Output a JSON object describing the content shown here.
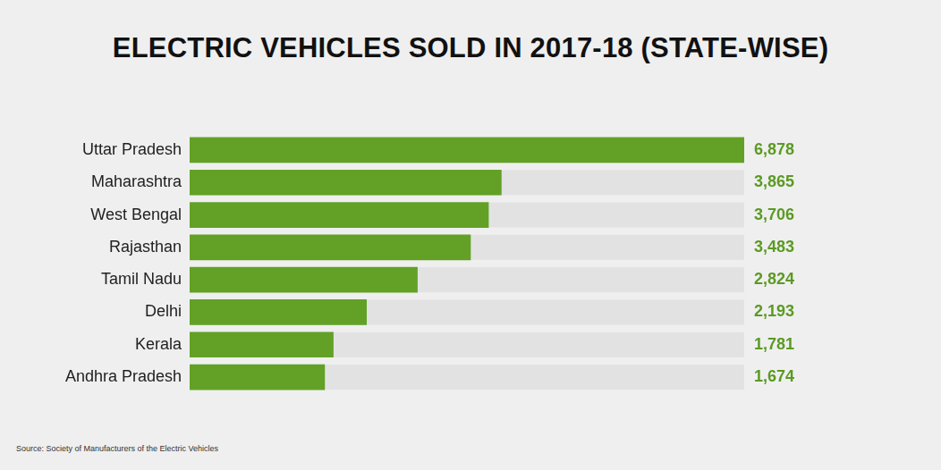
{
  "chart_data": {
    "type": "bar",
    "title": "ELECTRIC VEHICLES SOLD IN 2017-18 (STATE-WISE)",
    "source": "Source: Society of Manufacturers of the Electric Vehicles",
    "categories": [
      "Uttar Pradesh",
      "Maharashtra",
      "West Bengal",
      "Rajasthan",
      "Tamil Nadu",
      "Delhi",
      "Kerala",
      "Andhra Pradesh"
    ],
    "values": [
      6878,
      3865,
      3706,
      3483,
      2824,
      2193,
      1781,
      1674
    ],
    "value_labels": [
      "6,878",
      "3,865",
      "3,706",
      "3,483",
      "2,824",
      "2,193",
      "1,781",
      "1,674"
    ],
    "color": "#62a125",
    "orientation": "horizontal",
    "data_labels": true,
    "tick_labels": "y",
    "grid": false,
    "xlim": [
      0,
      6878
    ]
  }
}
